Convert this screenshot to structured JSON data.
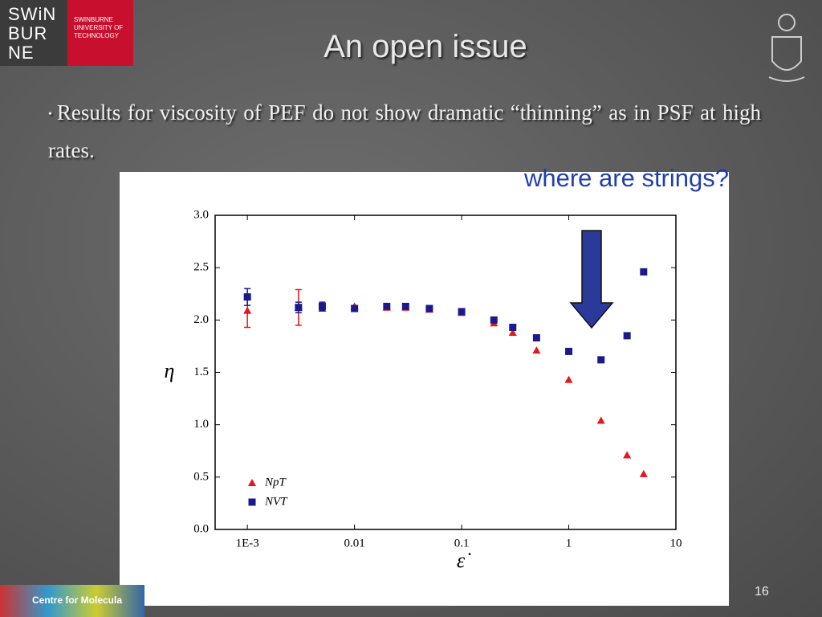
{
  "slide": {
    "logo_mark": [
      "SWiN",
      "BUR",
      "NE"
    ],
    "logo_name": [
      "SWINBURNE",
      "UNIVERSITY OF",
      "TECHNOLOGY"
    ],
    "title": "An open issue",
    "bullet": "Results for viscosity of PEF do not show dramatic “thinning” as in PSF at high rates.",
    "annotation": "where are strings?",
    "footer": "Centre for Molecula",
    "page_number": "16"
  },
  "chart_data": {
    "type": "scatter",
    "xscale": "log",
    "xlabel": "ε̇",
    "ylabel": "η",
    "xlim": [
      0.0005,
      10
    ],
    "xticks": [
      {
        "value": 0.001,
        "label": "1E-3"
      },
      0.01,
      0.1,
      1,
      10
    ],
    "ylim": [
      0,
      3
    ],
    "yticks": [
      {
        "value": 0,
        "label": "0.0"
      },
      0.5,
      {
        "value": 1,
        "label": "1.0"
      },
      1.5,
      {
        "value": 2,
        "label": "2.0"
      },
      2.5,
      {
        "value": 3,
        "label": "3.0"
      }
    ],
    "legend": "lower left",
    "series": [
      {
        "name": "NpT",
        "color": "#e8161b",
        "marker": "triangle",
        "x": [
          0.001,
          0.003,
          0.005,
          0.01,
          0.02,
          0.03,
          0.05,
          0.1,
          0.2,
          0.3,
          0.5,
          1,
          2,
          3.5,
          5
        ],
        "values": [
          2.09,
          2.12,
          2.11,
          2.13,
          2.12,
          2.12,
          2.1,
          2.07,
          1.97,
          1.88,
          1.71,
          1.43,
          1.04,
          0.71,
          0.53
        ],
        "errors": [
          0.16,
          0.17,
          null,
          null,
          null,
          null,
          null,
          null,
          null,
          null,
          null,
          null,
          null,
          null,
          null
        ]
      },
      {
        "name": "NVT",
        "color": "#1a1a8c",
        "marker": "square",
        "x": [
          0.001,
          0.003,
          0.005,
          0.01,
          0.02,
          0.03,
          0.05,
          0.1,
          0.2,
          0.3,
          0.5,
          1,
          2,
          3.5,
          5
        ],
        "values": [
          2.22,
          2.12,
          2.13,
          2.11,
          2.13,
          2.13,
          2.11,
          2.08,
          2.0,
          1.93,
          1.83,
          1.7,
          1.62,
          1.85,
          2.46
        ],
        "errors": [
          0.08,
          0.05,
          0.04,
          null,
          null,
          null,
          null,
          null,
          null,
          null,
          null,
          null,
          null,
          null,
          null
        ]
      }
    ]
  }
}
